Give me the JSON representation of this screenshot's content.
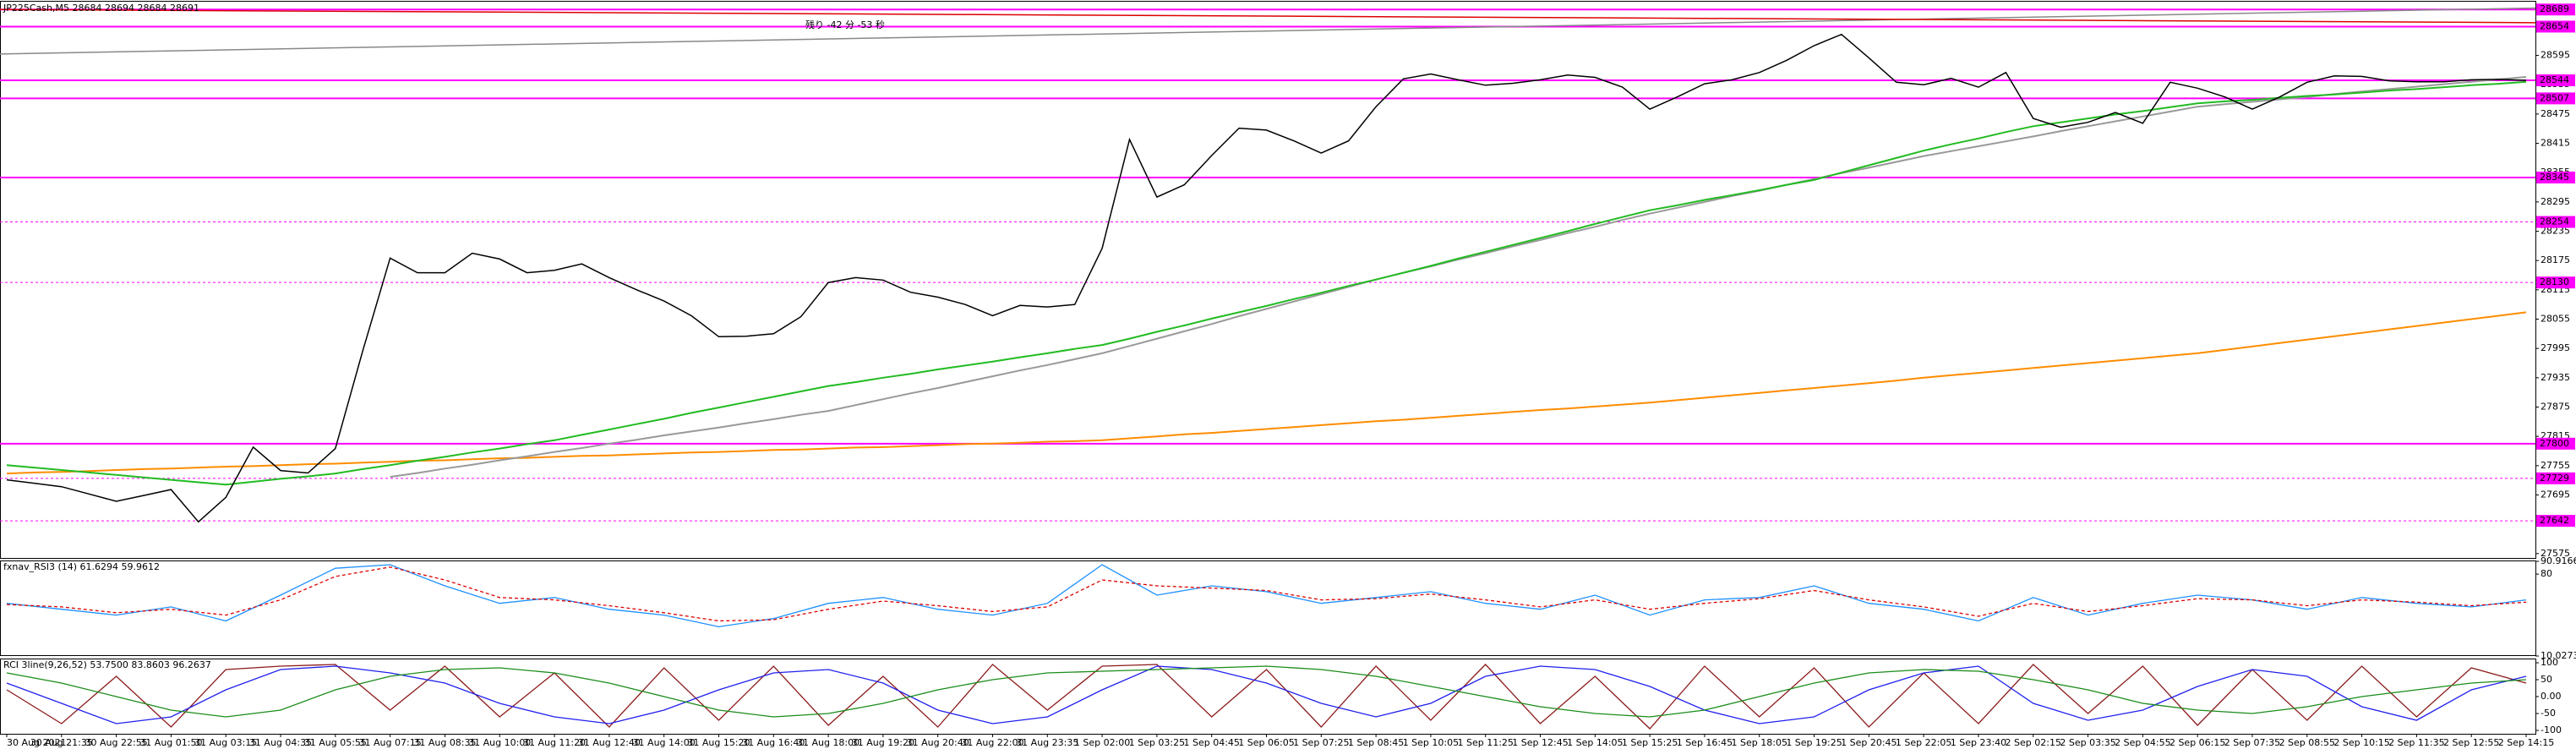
{
  "chart_data": [
    {
      "type": "line",
      "title": "JP225Cash,M5  28684 28694 28684 28691",
      "annotation": "残り -42 分 -53 秒",
      "categories": [
        "30 Aug 2021",
        null,
        "30 Aug 21:35",
        null,
        "30 Aug 22:55",
        null,
        "31 Aug 01:50",
        null,
        "31 Aug 03:15",
        null,
        "31 Aug 04:35",
        null,
        "31 Aug 05:55",
        null,
        "31 Aug 07:15",
        null,
        "31 Aug 08:35",
        null,
        "31 Aug 10:00",
        null,
        "31 Aug 11:20",
        null,
        "31 Aug 12:40",
        null,
        "31 Aug 14:00",
        null,
        "31 Aug 15:20",
        null,
        "31 Aug 16:40",
        null,
        "31 Aug 18:00",
        null,
        "31 Aug 19:20",
        null,
        "31 Aug 20:40",
        null,
        "31 Aug 22:00",
        null,
        "31 Aug 23:35",
        null,
        "1 Sep 02:00",
        null,
        "1 Sep 03:25",
        null,
        "1 Sep 04:45",
        null,
        "1 Sep 06:05",
        null,
        "1 Sep 07:25",
        null,
        "1 Sep 08:45",
        null,
        "1 Sep 10:05",
        null,
        "1 Sep 11:25",
        null,
        "1 Sep 12:45",
        null,
        "1 Sep 14:05",
        null,
        "1 Sep 15:25",
        null,
        "1 Sep 16:45",
        null,
        "1 Sep 18:05",
        null,
        "1 Sep 19:25",
        null,
        "1 Sep 20:45",
        null,
        "1 Sep 22:05",
        null,
        "1 Sep 23:40",
        null,
        "2 Sep 02:15",
        null,
        "2 Sep 03:35",
        null,
        "2 Sep 04:55",
        null,
        "2 Sep 06:15",
        null,
        "2 Sep 07:35",
        null,
        "2 Sep 08:55",
        null,
        "2 Sep 10:15",
        null,
        "2 Sep 11:35",
        null,
        "2 Sep 12:55",
        null,
        "2 Sep 14:15"
      ],
      "series": [
        {
          "color": "#ff8c00",
          "width": 2,
          "values": [
            27739,
            27741,
            27742,
            27744,
            27746,
            27748,
            27749,
            27751,
            27753,
            27754,
            27756,
            27758,
            27759,
            27761,
            27763,
            27765,
            27766,
            27768,
            27770,
            27771,
            27773,
            27775,
            27776,
            27778,
            27780,
            27782,
            27783,
            27785,
            27787,
            27788,
            27790,
            27792,
            27793,
            27795,
            27797,
            27799,
            27800,
            27802,
            27804,
            27805,
            27807,
            27811,
            27815,
            27819,
            27822,
            27826,
            27830,
            27834,
            27838,
            27842,
            27846,
            27849,
            27853,
            27857,
            27861,
            27865,
            27869,
            27872,
            27876,
            27880,
            27884,
            27889,
            27894,
            27899,
            27904,
            27909,
            27914,
            27919,
            27924,
            27929,
            27935,
            27940,
            27945,
            27950,
            27955,
            27960,
            27965,
            27970,
            27975,
            27980,
            27985,
            27992,
            27999,
            28006,
            28013,
            28020,
            28027,
            28034,
            28041,
            28048,
            28055,
            28062,
            28069
          ]
        },
        {
          "color": "#999999",
          "width": 2,
          "values": [
            null,
            null,
            null,
            null,
            null,
            null,
            null,
            null,
            null,
            null,
            null,
            null,
            null,
            null,
            27732,
            27740,
            27749,
            27757,
            27766,
            27774,
            27783,
            27791,
            27800,
            27808,
            27817,
            27825,
            27833,
            27842,
            27850,
            27859,
            27867,
            27879,
            27891,
            27903,
            27914,
            27926,
            27938,
            27950,
            27961,
            27973,
            27985,
            28000,
            28015,
            28030,
            28045,
            28061,
            28076,
            28091,
            28106,
            28121,
            28136,
            28150,
            28163,
            28177,
            28190,
            28204,
            28217,
            28231,
            28244,
            28258,
            28271,
            28283,
            28295,
            28307,
            28318,
            28330,
            28342,
            28354,
            28365,
            28377,
            28389,
            28399,
            28409,
            28419,
            28429,
            28440,
            28450,
            28460,
            28470,
            28480,
            28490,
            28495,
            28500,
            28505,
            28510,
            28516,
            28521,
            28526,
            28531,
            28536,
            28541,
            28546,
            28551
          ]
        },
        {
          "color": "#22bb22",
          "width": 2,
          "values": [
            27756,
            27751,
            27746,
            27741,
            27736,
            27731,
            27726,
            27721,
            27716,
            27722,
            27728,
            27733,
            27739,
            27748,
            27756,
            27765,
            27773,
            27782,
            27790,
            27799,
            27807,
            27818,
            27829,
            27840,
            27851,
            27863,
            27874,
            27885,
            27896,
            27907,
            27918,
            27926,
            27935,
            27943,
            27952,
            27960,
            27968,
            27977,
            27985,
            27994,
            28002,
            28015,
            28029,
            28042,
            28056,
            28069,
            28082,
            28096,
            28109,
            28123,
            28136,
            28150,
            28164,
            28179,
            28193,
            28207,
            28221,
            28235,
            28250,
            28264,
            28278,
            28288,
            28299,
            28309,
            28319,
            28330,
            28340,
            28355,
            28370,
            28385,
            28400,
            28413,
            28425,
            28438,
            28450,
            28458,
            28466,
            28474,
            28481,
            28489,
            28497,
            28501,
            28504,
            28508,
            28512,
            28515,
            28519,
            28523,
            28526,
            28530,
            28534,
            28537,
            28541
          ]
        },
        {
          "color": "#000000",
          "width": 1.5,
          "values": [
            27726,
            27719,
            27712,
            27697,
            27682,
            27694,
            27706,
            27640,
            27690,
            27793,
            27745,
            27740,
            27790,
            27990,
            28180,
            28150,
            28150,
            28190,
            28178,
            28150,
            28155,
            28168,
            28140,
            28115,
            28092,
            28062,
            28019,
            28020,
            28025,
            28060,
            28130,
            28140,
            28135,
            28110,
            28100,
            28085,
            28062,
            28083,
            28080,
            28085,
            28200,
            28423,
            28305,
            28330,
            28390,
            28446,
            28442,
            28420,
            28395,
            28420,
            28490,
            28547,
            28557,
            28545,
            28534,
            28538,
            28545,
            28555,
            28550,
            28530,
            28485,
            28510,
            28537,
            28545,
            28560,
            28585,
            28615,
            28638,
            28590,
            28540,
            28535,
            28548,
            28530,
            28560,
            28466,
            28448,
            28458,
            28478,
            28456,
            28540,
            28528,
            28510,
            28485,
            28510,
            28540,
            28553,
            28552,
            28543,
            28541,
            28541,
            28545,
            28546,
            28544
          ]
        }
      ],
      "ylim": [
        27566,
        28705
      ],
      "yticks": [
        27575,
        27635,
        27695,
        27755,
        27815,
        27875,
        27935,
        27995,
        28055,
        28115,
        28175,
        28235,
        28295,
        28355,
        28415,
        28475,
        28535,
        28595,
        28655
      ],
      "level_color": "#ff00ff",
      "levels": [
        {
          "value": 28689,
          "style": "solid"
        },
        {
          "value": 28654,
          "style": "solid"
        },
        {
          "value": 28544,
          "style": "solid"
        },
        {
          "value": 28507,
          "style": "solid"
        },
        {
          "value": 28345,
          "style": "solid"
        },
        {
          "value": 28254,
          "style": "dashed"
        },
        {
          "value": 28130,
          "style": "dashed"
        },
        {
          "value": 27800,
          "style": "solid"
        },
        {
          "value": 27729,
          "style": "dashed"
        },
        {
          "value": 27642,
          "style": "dashed"
        }
      ],
      "trendlines": [
        {
          "color": "#888888",
          "values": [
            28598,
            28692
          ]
        },
        {
          "color": "#dd0000",
          "values": [
            28689,
            28662
          ]
        }
      ]
    },
    {
      "type": "line",
      "title": "fxnav_RSI3 (14) 61.6294 59.9612",
      "series": [
        {
          "color": "#1e90ff",
          "dash": false,
          "values": [
            55,
            50,
            45,
            52,
            40,
            62,
            85,
            88,
            70,
            55,
            60,
            50,
            45,
            35,
            42,
            55,
            60,
            50,
            45,
            55,
            88,
            62,
            70,
            65,
            55,
            60,
            65,
            55,
            50,
            62,
            45,
            58,
            60,
            70,
            55,
            50,
            40,
            60,
            45,
            55,
            62,
            58,
            50,
            60,
            55,
            52,
            58
          ]
        },
        {
          "color": "#dd0000",
          "dash": true,
          "values": [
            54,
            52,
            47,
            50,
            45,
            58,
            78,
            86,
            75,
            60,
            58,
            53,
            47,
            40,
            41,
            50,
            57,
            53,
            48,
            52,
            75,
            70,
            68,
            66,
            58,
            59,
            63,
            58,
            52,
            58,
            50,
            55,
            59,
            66,
            58,
            52,
            44,
            55,
            48,
            53,
            59,
            58,
            53,
            58,
            56,
            53,
            56
          ]
        }
      ],
      "ylim": [
        10.0273,
        90.9166
      ],
      "yticks": [
        10.0273,
        80,
        90.9166
      ]
    },
    {
      "type": "line",
      "title": "RCI 3line(9,26,52) 53.7500 83.8603 96.2637",
      "series": [
        {
          "color": "#8b1a1a",
          "dash": false,
          "values": [
            20,
            -80,
            60,
            -90,
            80,
            90,
            95,
            -40,
            90,
            -60,
            70,
            -90,
            85,
            -70,
            90,
            -85,
            60,
            -90,
            95,
            -40,
            90,
            95,
            -60,
            80,
            -90,
            90,
            -70,
            95,
            -80,
            60,
            -95,
            90,
            -60,
            85,
            -90,
            70,
            -80,
            95,
            -50,
            90,
            -85,
            80,
            -70,
            90,
            -60,
            85,
            40
          ]
        },
        {
          "color": "#2020ee",
          "dash": false,
          "values": [
            40,
            -20,
            -80,
            -60,
            20,
            80,
            90,
            70,
            40,
            -20,
            -60,
            -80,
            -40,
            20,
            70,
            80,
            40,
            -40,
            -80,
            -60,
            20,
            90,
            80,
            40,
            -20,
            -60,
            -20,
            60,
            90,
            80,
            30,
            -40,
            -80,
            -60,
            20,
            70,
            90,
            -20,
            -70,
            -40,
            30,
            80,
            60,
            -30,
            -70,
            20,
            60
          ]
        },
        {
          "color": "#1a8c1a",
          "dash": false,
          "values": [
            70,
            40,
            0,
            -40,
            -60,
            -40,
            20,
            60,
            80,
            85,
            70,
            40,
            0,
            -40,
            -60,
            -50,
            -20,
            20,
            50,
            70,
            75,
            80,
            85,
            90,
            80,
            60,
            30,
            0,
            -30,
            -50,
            -60,
            -40,
            0,
            40,
            70,
            80,
            75,
            50,
            20,
            -20,
            -40,
            -50,
            -30,
            0,
            20,
            40,
            50
          ]
        }
      ],
      "ylim": [
        -110,
        110
      ],
      "yticks": [
        -100,
        -50,
        {
          "value": 0,
          "label": "0.00"
        },
        50,
        100
      ]
    }
  ]
}
